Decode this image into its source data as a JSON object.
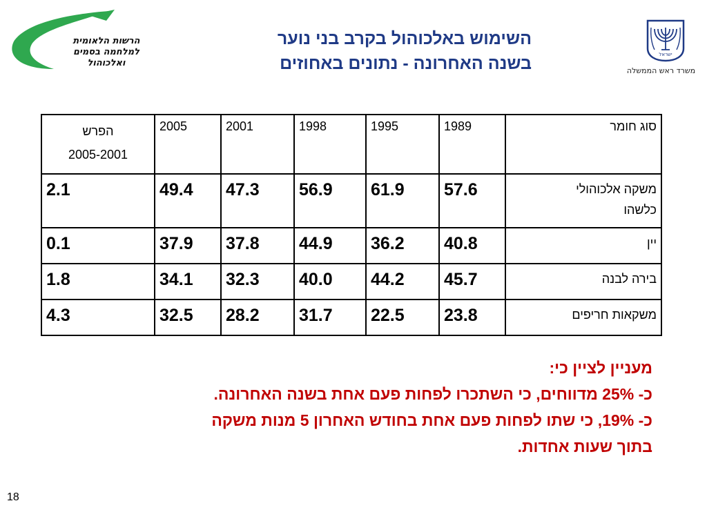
{
  "logo_left": {
    "lines": [
      "הרשות הלאומית",
      "למלחמה בסמים",
      "ואלכוהול"
    ],
    "arc_color": "#2fa84f"
  },
  "title": {
    "line1": "השימוש באלכוהול בקרב בני נוער",
    "line2": "בשנה האחרונה - נתונים באחוזים",
    "color": "#1f3a86"
  },
  "emblem": {
    "icon": "state-emblem-icon",
    "inscription": "ישראל",
    "caption": "משרד ראש הממשלה"
  },
  "table": {
    "headers": {
      "type": "סוג חומר",
      "years": [
        "1989",
        "1995",
        "1998",
        "2001",
        "2005"
      ],
      "diff_line1": "הפרש",
      "diff_line2": "2005-2001"
    },
    "rows": [
      {
        "type_line1": "משקה אלכוהולי",
        "type_line2": "כלשהו",
        "values": [
          "57.6",
          "61.9",
          "56.9",
          "47.3",
          "49.4",
          "2.1"
        ]
      },
      {
        "type_line1": "יין",
        "type_line2": "",
        "values": [
          "40.8",
          "36.2",
          "44.9",
          "37.8",
          "37.9",
          "0.1"
        ]
      },
      {
        "type_line1": "בירה לבנה",
        "type_line2": "",
        "values": [
          "45.7",
          "44.2",
          "40.0",
          "32.3",
          "34.1",
          "1.8"
        ]
      },
      {
        "type_line1": "משקאות חריפים",
        "type_line2": "",
        "values": [
          "23.8",
          "22.5",
          "31.7",
          "28.2",
          "32.5",
          "4.3"
        ]
      }
    ]
  },
  "notes": {
    "heading": "מעניין לציין כי:",
    "line1": "כ- 25% מדווחים, כי השתכרו לפחות פעם אחת בשנה האחרונה.",
    "line2": "כ- 19%, כי שתו לפחות פעם אחת בחודש האחרון 5 מנות משקה",
    "line3": "בתוך שעות אחדות.",
    "color": "#c00000"
  },
  "page_number": "18"
}
